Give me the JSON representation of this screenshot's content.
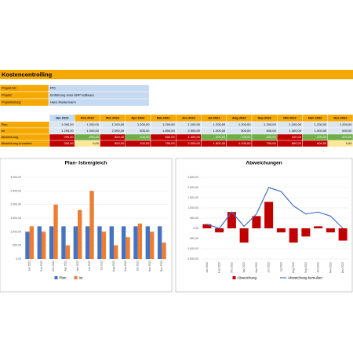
{
  "header": {
    "title": "Kostencontrolling"
  },
  "project": [
    {
      "label": "Projekt-Nr.:",
      "value": "P01"
    },
    {
      "label": "Projekt:",
      "value": "Einführung einer ERP-Software"
    },
    {
      "label": "Projektleitung:",
      "value": "Hans Mustermann"
    }
  ],
  "table": {
    "columns": [
      "Jan 2022",
      "Feb 2022",
      "Mrz 2022",
      "Apr 2022",
      "Mai 2022",
      "Jun 2022",
      "Jul 2022",
      "Aug 2022",
      "Sep 2022",
      "Okt 2022",
      "Nov 2022",
      "Dez 2022"
    ],
    "rows": [
      {
        "label": "Plan",
        "cells": [
          "1.000,00",
          "1.200,00",
          "1.200,00",
          "1.200,00",
          "1.200,00",
          "1.200,00",
          "1.200,00",
          "1.200,00",
          "1.200,00",
          "1.200,00",
          "1.200,00",
          "1.200,00"
        ]
      },
      {
        "label": "Ist",
        "cells": [
          "1.200,00",
          "1.000,00",
          "2.000,00",
          "500,00",
          "1.800,00",
          "2.500,00",
          "1.000,00",
          "500,00",
          "800,00",
          "1.300,00",
          "1.000,00",
          "600,00"
        ]
      },
      {
        "label": "Abweichung",
        "cells": [
          "200,00",
          "-200,00",
          "800,00",
          "-700,00",
          "600,00",
          "1.300,00",
          "-200,00",
          "-700,00",
          "-400,00",
          "100,00",
          "-200,00",
          "-600,00"
        ]
      },
      {
        "label": "Abweichung kumuliert",
        "cells": [
          "200,00",
          "0,00",
          "800,00",
          "100,00",
          "700,00",
          "2.000,00",
          "1.800,00",
          "1.100,00",
          "700,00",
          "800,00",
          "600,00",
          "0,00"
        ]
      }
    ]
  },
  "chart_data": [
    {
      "type": "bar",
      "title": "Plan- Istvergleich",
      "categories": [
        "Jan 2022",
        "Feb 2022",
        "Mrz 2022",
        "Apr 2022",
        "Mai 2022",
        "Jun 2022",
        "Jul 2022",
        "Aug 2022",
        "Sep 2022",
        "Okt 2022",
        "Nov 2022",
        "Dez 2022"
      ],
      "series": [
        {
          "name": "Plan",
          "color": "#4472c4",
          "values": [
            1000,
            1200,
            1200,
            1200,
            1200,
            1200,
            1200,
            1200,
            1200,
            1200,
            1200,
            1200
          ]
        },
        {
          "name": "Ist",
          "color": "#ed7d31",
          "values": [
            1200,
            1000,
            2000,
            500,
            1800,
            2500,
            1000,
            500,
            800,
            1300,
            1000,
            600
          ]
        }
      ],
      "ylim": [
        0,
        3000
      ],
      "yticks": [
        {
          "value": 0,
          "label": "0,00"
        },
        {
          "value": 500,
          "label": "500,00"
        },
        {
          "value": 1000,
          "label": "1.000,00"
        },
        {
          "value": 1500,
          "label": "1.500,00"
        },
        {
          "value": 2000,
          "label": "2.000,00"
        },
        {
          "value": 2500,
          "label": "2.500,00"
        },
        {
          "value": 3000,
          "label": "3.000,00"
        }
      ]
    },
    {
      "type": "combo",
      "title": "Abweichungen",
      "categories": [
        "Jan 2022",
        "Feb 2022",
        "Mrz 2022",
        "Apr 2022",
        "Mai 2022",
        "Jun 2022",
        "Jul 2022",
        "Aug 2022",
        "Sep 2022",
        "Okt 2022",
        "Nov 2022",
        "Dez 2022"
      ],
      "series": [
        {
          "name": "Abweichung",
          "type": "bar",
          "color": "#c00000",
          "values": [
            200,
            -200,
            800,
            -700,
            600,
            1300,
            -200,
            -700,
            -400,
            100,
            -200,
            -600
          ]
        },
        {
          "name": "Abweichung kumuliert",
          "type": "line",
          "color": "#4472c4",
          "values": [
            200,
            0,
            800,
            100,
            700,
            2000,
            1800,
            1100,
            700,
            800,
            600,
            0
          ]
        }
      ],
      "ylim": [
        -1500,
        2500
      ],
      "yticks": [
        {
          "value": -1500,
          "label": "-1.500,00"
        },
        {
          "value": -1000,
          "label": "-1.000,00"
        },
        {
          "value": -500,
          "label": "-500,00"
        },
        {
          "value": 0,
          "label": "0,00"
        },
        {
          "value": 500,
          "label": "500,00"
        },
        {
          "value": 1000,
          "label": "1.000,00"
        },
        {
          "value": 1500,
          "label": "1.500,00"
        },
        {
          "value": 2000,
          "label": "2.000,00"
        },
        {
          "value": 2500,
          "label": "2.500,00"
        }
      ]
    }
  ]
}
